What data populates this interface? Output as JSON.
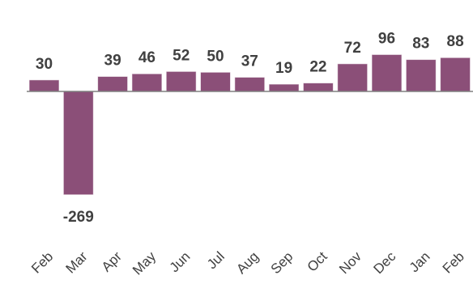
{
  "chart_data": {
    "type": "bar",
    "categories": [
      "Feb",
      "Mar",
      "Apr",
      "May",
      "Jun",
      "Jul",
      "Aug",
      "Sep",
      "Oct",
      "Nov",
      "Dec",
      "Jan",
      "Feb"
    ],
    "values": [
      30,
      -269,
      39,
      46,
      52,
      50,
      37,
      19,
      22,
      72,
      96,
      83,
      88
    ],
    "value_labels": [
      "30",
      "-269",
      "39",
      "46",
      "52",
      "50",
      "37",
      "19",
      "22",
      "72",
      "96",
      "83",
      "88"
    ],
    "title": "",
    "xlabel": "",
    "ylabel": "",
    "grid": false,
    "legend": "none",
    "colors": {
      "bar": "#8b4f78",
      "zero_line": "#808080",
      "text": "#404040"
    }
  }
}
